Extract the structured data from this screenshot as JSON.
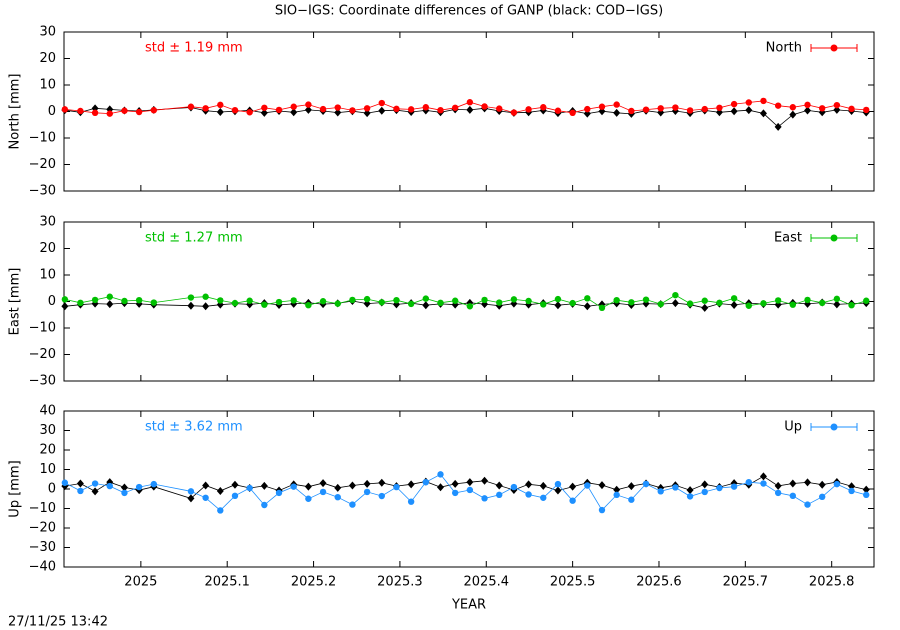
{
  "footer": "27/11/25 13:42",
  "chart_data": [
    {
      "type": "line",
      "title": "SIO−IGS: Coordinate differences of GANP (black: COD−IGS)",
      "ylabel": "North [mm]",
      "annotation": "std ± 1.19 mm",
      "legend": "upper right",
      "x": [
        2024.912,
        2024.93,
        2024.947,
        2024.964,
        2024.981,
        2024.998,
        2025.015,
        2025.058,
        2025.075,
        2025.092,
        2025.109,
        2025.126,
        2025.143,
        2025.16,
        2025.177,
        2025.194,
        2025.211,
        2025.228,
        2025.245,
        2025.262,
        2025.279,
        2025.296,
        2025.313,
        2025.33,
        2025.347,
        2025.364,
        2025.381,
        2025.398,
        2025.415,
        2025.432,
        2025.449,
        2025.466,
        2025.483,
        2025.5,
        2025.517,
        2025.534,
        2025.551,
        2025.568,
        2025.585,
        2025.602,
        2025.619,
        2025.636,
        2025.653,
        2025.67,
        2025.687,
        2025.704,
        2025.721,
        2025.738,
        2025.755,
        2025.772,
        2025.789,
        2025.806,
        2025.823,
        2025.84
      ],
      "xlim": [
        2024.911,
        2025.849
      ],
      "xticks": [
        2025,
        2025.1,
        2025.2,
        2025.3,
        2025.4,
        2025.5,
        2025.6,
        2025.7,
        2025.8
      ],
      "ylim": [
        -30,
        30
      ],
      "yticks": [
        {
          "value": -30,
          "label": "−30"
        },
        {
          "value": -20,
          "label": "−20"
        },
        {
          "value": -10,
          "label": "−10"
        },
        0,
        10,
        20,
        30
      ],
      "series": [
        {
          "color": "#000000",
          "values": [
            0.5,
            -0.3,
            1.2,
            0.8,
            0.4,
            0.2,
            0.6,
            1.5,
            0.3,
            -0.2,
            0.1,
            0.4,
            -0.5,
            0.2,
            -0.3,
            0.6,
            0.2,
            -0.4,
            0.1,
            -0.6,
            0.3,
            0.5,
            -0.2,
            0.4,
            -0.3,
            0.8,
            0.6,
            1.2,
            0.2,
            -0.5,
            -0.3,
            0.4,
            -0.6,
            0.2,
            -0.8,
            0.1,
            -0.5,
            -0.9,
            0.3,
            -0.4,
            0.2,
            -0.6,
            0.4,
            -0.3,
            0.1,
            0.5,
            -0.7,
            -5.8,
            -1.2,
            0.4,
            -0.3,
            0.6,
            0.2,
            -0.4
          ]
        },
        {
          "name": "North",
          "color": "#ff0000",
          "values": [
            0.8,
            0.2,
            -0.5,
            -0.8,
            0.3,
            -0.2,
            0.5,
            1.8,
            1.2,
            2.5,
            0.5,
            -0.3,
            1.4,
            0.6,
            1.8,
            2.6,
            0.9,
            1.5,
            0.4,
            1.2,
            3.2,
            1.0,
            0.8,
            1.6,
            0.5,
            1.4,
            3.5,
            1.9,
            1.1,
            -0.4,
            0.8,
            1.6,
            0.3,
            -0.5,
            0.9,
            1.8,
            2.6,
            0.2,
            0.7,
            1.2,
            1.5,
            0.4,
            0.9,
            1.4,
            2.8,
            3.4,
            4.0,
            2.2,
            1.6,
            2.5,
            1.2,
            2.4,
            1.0,
            0.6
          ]
        }
      ]
    },
    {
      "type": "line",
      "ylabel": "East [mm]",
      "annotation": "std ± 1.27 mm",
      "legend": "upper right",
      "x": [
        2024.912,
        2024.93,
        2024.947,
        2024.964,
        2024.981,
        2024.998,
        2025.015,
        2025.058,
        2025.075,
        2025.092,
        2025.109,
        2025.126,
        2025.143,
        2025.16,
        2025.177,
        2025.194,
        2025.211,
        2025.228,
        2025.245,
        2025.262,
        2025.279,
        2025.296,
        2025.313,
        2025.33,
        2025.347,
        2025.364,
        2025.381,
        2025.398,
        2025.415,
        2025.432,
        2025.449,
        2025.466,
        2025.483,
        2025.5,
        2025.517,
        2025.534,
        2025.551,
        2025.568,
        2025.585,
        2025.602,
        2025.619,
        2025.636,
        2025.653,
        2025.67,
        2025.687,
        2025.704,
        2025.721,
        2025.738,
        2025.755,
        2025.772,
        2025.789,
        2025.806,
        2025.823,
        2025.84
      ],
      "xlim": [
        2024.911,
        2025.849
      ],
      "xticks": [
        2025,
        2025.1,
        2025.2,
        2025.3,
        2025.4,
        2025.5,
        2025.6,
        2025.7,
        2025.8
      ],
      "ylim": [
        -30,
        30
      ],
      "yticks": [
        {
          "value": -30,
          "label": "−30"
        },
        {
          "value": -20,
          "label": "−20"
        },
        {
          "value": -10,
          "label": "−10"
        },
        0,
        10,
        20,
        30
      ],
      "series": [
        {
          "color": "#000000",
          "values": [
            -1.8,
            -1.2,
            -0.8,
            -1.0,
            -0.6,
            -0.9,
            -1.2,
            -1.6,
            -1.8,
            -1.2,
            -0.8,
            -1.1,
            -0.6,
            -1.3,
            -0.9,
            -0.5,
            -1.0,
            -0.7,
            0.2,
            -0.8,
            -0.4,
            -1.1,
            -0.6,
            -1.4,
            -0.9,
            -1.2,
            -0.5,
            -1.0,
            -1.6,
            -0.8,
            -1.2,
            -0.6,
            -1.4,
            -0.9,
            -1.8,
            -1.1,
            -0.7,
            -1.3,
            -0.8,
            -1.0,
            -0.6,
            -1.2,
            -2.4,
            -0.8,
            -1.3,
            -0.6,
            -1.0,
            -1.2,
            -0.5,
            -0.9,
            -0.4,
            -1.1,
            -0.8,
            -0.6
          ]
        },
        {
          "name": "East",
          "color": "#00c000",
          "values": [
            0.8,
            -0.5,
            0.6,
            1.8,
            0.2,
            0.5,
            -0.4,
            1.5,
            1.8,
            0.4,
            -0.6,
            0.3,
            -1.2,
            -0.2,
            0.4,
            -1.4,
            0.1,
            -0.8,
            0.6,
            0.9,
            -0.3,
            0.5,
            -0.9,
            1.1,
            -0.5,
            0.3,
            -1.8,
            0.6,
            -0.4,
            0.8,
            0.2,
            -1.1,
            0.9,
            -0.6,
            1.2,
            -2.4,
            0.5,
            -0.3,
            0.7,
            -1.0,
            2.4,
            -0.8,
            0.3,
            -0.5,
            1.2,
            -1.6,
            -0.7,
            0.4,
            -1.2,
            0.6,
            -0.5,
            1.0,
            -1.4,
            0.3
          ]
        }
      ]
    },
    {
      "type": "line",
      "ylabel": "Up [mm]",
      "annotation": "std ± 3.62 mm",
      "legend": "upper right",
      "xlabel": "YEAR",
      "x": [
        2024.912,
        2024.93,
        2024.947,
        2024.964,
        2024.981,
        2024.998,
        2025.015,
        2025.058,
        2025.075,
        2025.092,
        2025.109,
        2025.126,
        2025.143,
        2025.16,
        2025.177,
        2025.194,
        2025.211,
        2025.228,
        2025.245,
        2025.262,
        2025.279,
        2025.296,
        2025.313,
        2025.33,
        2025.347,
        2025.364,
        2025.381,
        2025.398,
        2025.415,
        2025.432,
        2025.449,
        2025.466,
        2025.483,
        2025.5,
        2025.517,
        2025.534,
        2025.551,
        2025.568,
        2025.585,
        2025.602,
        2025.619,
        2025.636,
        2025.653,
        2025.67,
        2025.687,
        2025.704,
        2025.721,
        2025.738,
        2025.755,
        2025.772,
        2025.789,
        2025.806,
        2025.823,
        2025.84
      ],
      "xlim": [
        2024.911,
        2025.849
      ],
      "xticks": [
        2025,
        2025.1,
        2025.2,
        2025.3,
        2025.4,
        2025.5,
        2025.6,
        2025.7,
        2025.8
      ],
      "ylim": [
        -40,
        40
      ],
      "yticks": [
        {
          "value": -40,
          "label": "−40"
        },
        {
          "value": -30,
          "label": "−30"
        },
        {
          "value": -20,
          "label": "−20"
        },
        {
          "value": -10,
          "label": "−10"
        },
        0,
        10,
        20,
        30,
        40
      ],
      "series": [
        {
          "color": "#000000",
          "values": [
            1.5,
            2.8,
            -1.2,
            3.5,
            0.8,
            -0.6,
            1.2,
            -4.8,
            1.8,
            -1.0,
            2.2,
            0.5,
            1.6,
            -0.8,
            2.4,
            1.2,
            3.0,
            0.6,
            1.8,
            2.6,
            3.2,
            1.5,
            2.4,
            3.8,
            0.9,
            2.6,
            3.5,
            4.2,
            1.8,
            -0.5,
            2.4,
            1.6,
            -0.8,
            1.2,
            3.2,
            2.0,
            -0.4,
            1.5,
            2.8,
            0.6,
            1.9,
            -0.6,
            2.4,
            1.0,
            3.0,
            2.2,
            6.5,
            1.6,
            2.8,
            3.4,
            2.2,
            3.6,
            1.4,
            -0.3
          ]
        },
        {
          "name": "Up",
          "color": "#1e90ff",
          "values": [
            3.2,
            -1.0,
            2.8,
            1.5,
            -2.0,
            1.0,
            2.5,
            -1.2,
            -4.5,
            -11.0,
            -3.5,
            0.5,
            -8.2,
            -2.0,
            1.2,
            -5.0,
            -1.5,
            -4.2,
            -8.0,
            -1.5,
            -3.6,
            1.0,
            -6.5,
            3.5,
            7.5,
            -2.0,
            -0.5,
            -4.8,
            -3.0,
            1.0,
            -2.8,
            -4.5,
            2.5,
            -6.0,
            1.8,
            -10.8,
            -3.0,
            -5.5,
            2.6,
            -1.2,
            0.8,
            -3.8,
            -1.5,
            0.5,
            1.2,
            3.5,
            2.8,
            -2.0,
            -3.5,
            -8.0,
            -4.0,
            2.5,
            -1.0,
            -3.0
          ]
        }
      ]
    }
  ]
}
